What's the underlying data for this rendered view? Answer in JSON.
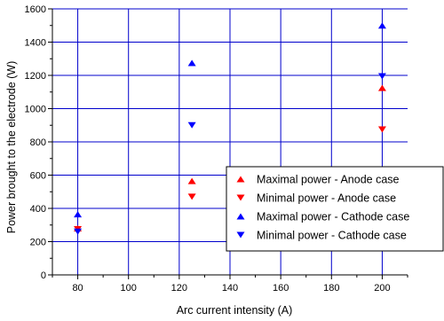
{
  "chart_data": {
    "type": "scatter",
    "title": "",
    "xlabel": "Arc current intensity (A)",
    "ylabel": "Power brought to the electrode (W)",
    "xlim": [
      70,
      210
    ],
    "ylim": [
      0,
      1600
    ],
    "xticks": [
      80,
      100,
      120,
      140,
      160,
      180,
      200
    ],
    "yticks": [
      0,
      200,
      400,
      600,
      800,
      1000,
      1200,
      1400,
      1600
    ],
    "grid": true,
    "legend_position": "bottom-right",
    "series": [
      {
        "name": "Maximal power - Anode case",
        "marker": "triangle-up",
        "color": "#ff0000",
        "x": [
          80,
          125,
          200
        ],
        "y": [
          280,
          565,
          1125
        ]
      },
      {
        "name": "Minimal power - Anode case",
        "marker": "triangle-down",
        "color": "#ff0000",
        "x": [
          80,
          125,
          200
        ],
        "y": [
          275,
          470,
          875
        ]
      },
      {
        "name": "Maximal power - Cathode case",
        "marker": "triangle-up",
        "color": "#0000ff",
        "x": [
          80,
          125,
          200
        ],
        "y": [
          365,
          1275,
          1500
        ]
      },
      {
        "name": "Minimal power - Cathode case",
        "marker": "triangle-down",
        "color": "#0000ff",
        "x": [
          80,
          125,
          200
        ],
        "y": [
          260,
          900,
          1195
        ]
      }
    ]
  },
  "colors": {
    "grid": "#0000cc",
    "axis": "#000000"
  }
}
